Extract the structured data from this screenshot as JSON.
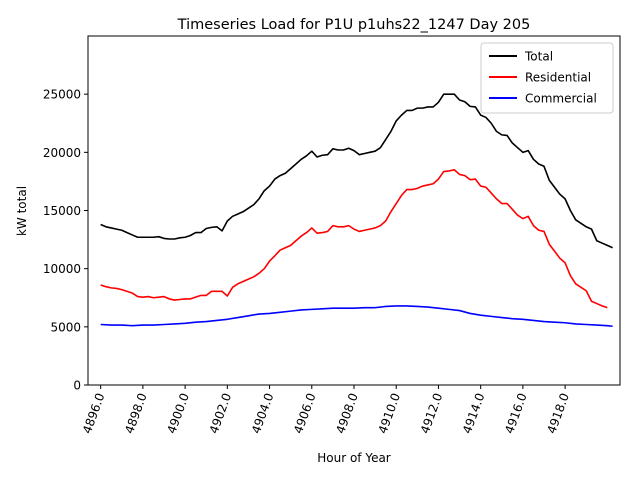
{
  "chart_data": {
    "type": "line",
    "title": "Timeseries Load for P1U p1uhs22_1247  Day 205",
    "xlabel": "Hour of Year",
    "ylabel": "kW total",
    "xlim": [
      4895.4,
      4920.6
    ],
    "ylim": [
      0,
      30000
    ],
    "xticks": [
      4896,
      4898,
      4900,
      4902,
      4904,
      4906,
      4908,
      4910,
      4912,
      4914,
      4916,
      4918
    ],
    "xtick_labels": [
      "4896.0",
      "4898.0",
      "4900.0",
      "4902.0",
      "4904.0",
      "4906.0",
      "4908.0",
      "4910.0",
      "4912.0",
      "4914.0",
      "4916.0",
      "4918.0"
    ],
    "yticks": [
      0,
      5000,
      10000,
      15000,
      20000,
      25000
    ],
    "ytick_labels": [
      "0",
      "5000",
      "10000",
      "15000",
      "20000",
      "25000"
    ],
    "legend_position": "top-right",
    "series": [
      {
        "name": "Total",
        "color": "#000000",
        "points": [
          [
            4896.0,
            13800
          ],
          [
            4896.25,
            13600
          ],
          [
            4896.5,
            13500
          ],
          [
            4896.75,
            13400
          ],
          [
            4897.0,
            13300
          ],
          [
            4897.25,
            13100
          ],
          [
            4897.5,
            12900
          ],
          [
            4897.75,
            12700
          ],
          [
            4898.0,
            12700
          ],
          [
            4898.25,
            12700
          ],
          [
            4898.5,
            12700
          ],
          [
            4898.75,
            12750
          ],
          [
            4899.0,
            12600
          ],
          [
            4899.25,
            12550
          ],
          [
            4899.5,
            12550
          ],
          [
            4899.75,
            12650
          ],
          [
            4900.0,
            12700
          ],
          [
            4900.25,
            12850
          ],
          [
            4900.5,
            13100
          ],
          [
            4900.75,
            13100
          ],
          [
            4901.0,
            13450
          ],
          [
            4901.25,
            13550
          ],
          [
            4901.5,
            13600
          ],
          [
            4901.75,
            13250
          ],
          [
            4902.0,
            14100
          ],
          [
            4902.25,
            14500
          ],
          [
            4902.5,
            14700
          ],
          [
            4902.75,
            14900
          ],
          [
            4903.0,
            15200
          ],
          [
            4903.25,
            15500
          ],
          [
            4903.5,
            16000
          ],
          [
            4903.75,
            16700
          ],
          [
            4904.0,
            17100
          ],
          [
            4904.25,
            17700
          ],
          [
            4904.5,
            18000
          ],
          [
            4904.75,
            18200
          ],
          [
            4905.0,
            18600
          ],
          [
            4905.25,
            19000
          ],
          [
            4905.5,
            19400
          ],
          [
            4905.75,
            19700
          ],
          [
            4906.0,
            20100
          ],
          [
            4906.25,
            19600
          ],
          [
            4906.5,
            19750
          ],
          [
            4906.75,
            19800
          ],
          [
            4907.0,
            20300
          ],
          [
            4907.25,
            20200
          ],
          [
            4907.5,
            20200
          ],
          [
            4907.75,
            20350
          ],
          [
            4908.0,
            20150
          ],
          [
            4908.25,
            19800
          ],
          [
            4908.5,
            19900
          ],
          [
            4908.75,
            20000
          ],
          [
            4909.0,
            20100
          ],
          [
            4909.25,
            20400
          ],
          [
            4909.5,
            21100
          ],
          [
            4909.75,
            21800
          ],
          [
            4910.0,
            22700
          ],
          [
            4910.25,
            23200
          ],
          [
            4910.5,
            23600
          ],
          [
            4910.75,
            23600
          ],
          [
            4911.0,
            23800
          ],
          [
            4911.25,
            23800
          ],
          [
            4911.5,
            23900
          ],
          [
            4911.75,
            23900
          ],
          [
            4912.0,
            24300
          ],
          [
            4912.25,
            25000
          ],
          [
            4912.5,
            25000
          ],
          [
            4912.75,
            25000
          ],
          [
            4913.0,
            24500
          ],
          [
            4913.25,
            24350
          ],
          [
            4913.5,
            23950
          ],
          [
            4913.75,
            23900
          ],
          [
            4914.0,
            23200
          ],
          [
            4914.25,
            23000
          ],
          [
            4914.5,
            22500
          ],
          [
            4914.75,
            21800
          ],
          [
            4915.0,
            21500
          ],
          [
            4915.25,
            21450
          ],
          [
            4915.5,
            20800
          ],
          [
            4915.75,
            20400
          ],
          [
            4916.0,
            20000
          ],
          [
            4916.25,
            20150
          ],
          [
            4916.5,
            19400
          ],
          [
            4916.75,
            19000
          ],
          [
            4917.0,
            18800
          ],
          [
            4917.25,
            17600
          ],
          [
            4917.5,
            17000
          ],
          [
            4917.75,
            16400
          ],
          [
            4918.0,
            16000
          ],
          [
            4918.25,
            15000
          ],
          [
            4918.5,
            14200
          ],
          [
            4918.75,
            13900
          ],
          [
            4919.0,
            13600
          ],
          [
            4919.25,
            13400
          ],
          [
            4919.5,
            12400
          ],
          [
            4919.75,
            12200
          ],
          [
            4920.0,
            12000
          ],
          [
            4920.25,
            11800
          ]
        ]
      },
      {
        "name": "Residential",
        "color": "#ff0000",
        "points": [
          [
            4896.0,
            8600
          ],
          [
            4896.25,
            8450
          ],
          [
            4896.5,
            8350
          ],
          [
            4896.75,
            8300
          ],
          [
            4897.0,
            8200
          ],
          [
            4897.25,
            8050
          ],
          [
            4897.5,
            7900
          ],
          [
            4897.75,
            7600
          ],
          [
            4898.0,
            7550
          ],
          [
            4898.25,
            7600
          ],
          [
            4898.5,
            7500
          ],
          [
            4898.75,
            7550
          ],
          [
            4899.0,
            7600
          ],
          [
            4899.25,
            7400
          ],
          [
            4899.5,
            7300
          ],
          [
            4899.75,
            7350
          ],
          [
            4900.0,
            7400
          ],
          [
            4900.25,
            7400
          ],
          [
            4900.5,
            7550
          ],
          [
            4900.75,
            7700
          ],
          [
            4901.0,
            7700
          ],
          [
            4901.25,
            8050
          ],
          [
            4901.5,
            8050
          ],
          [
            4901.75,
            8050
          ],
          [
            4902.0,
            7650
          ],
          [
            4902.25,
            8400
          ],
          [
            4902.5,
            8700
          ],
          [
            4902.75,
            8900
          ],
          [
            4903.0,
            9100
          ],
          [
            4903.25,
            9300
          ],
          [
            4903.5,
            9600
          ],
          [
            4903.75,
            10000
          ],
          [
            4904.0,
            10650
          ],
          [
            4904.25,
            11100
          ],
          [
            4904.5,
            11600
          ],
          [
            4904.75,
            11800
          ],
          [
            4905.0,
            12000
          ],
          [
            4905.25,
            12400
          ],
          [
            4905.5,
            12800
          ],
          [
            4905.75,
            13100
          ],
          [
            4906.0,
            13500
          ],
          [
            4906.25,
            13050
          ],
          [
            4906.5,
            13100
          ],
          [
            4906.75,
            13200
          ],
          [
            4907.0,
            13700
          ],
          [
            4907.25,
            13600
          ],
          [
            4907.5,
            13600
          ],
          [
            4907.75,
            13700
          ],
          [
            4908.0,
            13400
          ],
          [
            4908.25,
            13200
          ],
          [
            4908.5,
            13300
          ],
          [
            4908.75,
            13400
          ],
          [
            4909.0,
            13500
          ],
          [
            4909.25,
            13700
          ],
          [
            4909.5,
            14100
          ],
          [
            4909.75,
            14900
          ],
          [
            4910.0,
            15600
          ],
          [
            4910.25,
            16300
          ],
          [
            4910.5,
            16800
          ],
          [
            4910.75,
            16800
          ],
          [
            4911.0,
            16900
          ],
          [
            4911.25,
            17100
          ],
          [
            4911.5,
            17200
          ],
          [
            4911.75,
            17300
          ],
          [
            4912.0,
            17700
          ],
          [
            4912.25,
            18350
          ],
          [
            4912.5,
            18400
          ],
          [
            4912.75,
            18500
          ],
          [
            4913.0,
            18100
          ],
          [
            4913.25,
            18000
          ],
          [
            4913.5,
            17650
          ],
          [
            4913.75,
            17700
          ],
          [
            4914.0,
            17100
          ],
          [
            4914.25,
            17000
          ],
          [
            4914.5,
            16500
          ],
          [
            4914.75,
            16000
          ],
          [
            4915.0,
            15600
          ],
          [
            4915.25,
            15600
          ],
          [
            4915.5,
            15100
          ],
          [
            4915.75,
            14600
          ],
          [
            4916.0,
            14300
          ],
          [
            4916.25,
            14500
          ],
          [
            4916.5,
            13700
          ],
          [
            4916.75,
            13300
          ],
          [
            4917.0,
            13200
          ],
          [
            4917.25,
            12100
          ],
          [
            4917.5,
            11500
          ],
          [
            4917.75,
            10900
          ],
          [
            4918.0,
            10500
          ],
          [
            4918.25,
            9400
          ],
          [
            4918.5,
            8700
          ],
          [
            4918.75,
            8400
          ],
          [
            4919.0,
            8100
          ],
          [
            4919.25,
            7200
          ],
          [
            4919.5,
            7000
          ],
          [
            4919.75,
            6800
          ],
          [
            4920.0,
            6650
          ]
        ]
      },
      {
        "name": "Commercial",
        "color": "#0000ff",
        "points": [
          [
            4896.0,
            5200
          ],
          [
            4896.5,
            5150
          ],
          [
            4897.0,
            5150
          ],
          [
            4897.5,
            5100
          ],
          [
            4898.0,
            5150
          ],
          [
            4898.5,
            5150
          ],
          [
            4899.0,
            5200
          ],
          [
            4899.5,
            5250
          ],
          [
            4900.0,
            5300
          ],
          [
            4900.5,
            5400
          ],
          [
            4901.0,
            5450
          ],
          [
            4901.5,
            5550
          ],
          [
            4902.0,
            5650
          ],
          [
            4902.5,
            5800
          ],
          [
            4903.0,
            5950
          ],
          [
            4903.5,
            6100
          ],
          [
            4904.0,
            6150
          ],
          [
            4904.5,
            6250
          ],
          [
            4905.0,
            6350
          ],
          [
            4905.5,
            6450
          ],
          [
            4906.0,
            6500
          ],
          [
            4906.5,
            6550
          ],
          [
            4907.0,
            6600
          ],
          [
            4907.5,
            6600
          ],
          [
            4908.0,
            6600
          ],
          [
            4908.5,
            6650
          ],
          [
            4909.0,
            6650
          ],
          [
            4909.5,
            6750
          ],
          [
            4910.0,
            6800
          ],
          [
            4910.5,
            6800
          ],
          [
            4911.0,
            6750
          ],
          [
            4911.5,
            6700
          ],
          [
            4912.0,
            6600
          ],
          [
            4912.5,
            6500
          ],
          [
            4913.0,
            6400
          ],
          [
            4913.5,
            6150
          ],
          [
            4914.0,
            6000
          ],
          [
            4914.5,
            5900
          ],
          [
            4915.0,
            5800
          ],
          [
            4915.5,
            5700
          ],
          [
            4916.0,
            5650
          ],
          [
            4916.5,
            5550
          ],
          [
            4917.0,
            5450
          ],
          [
            4917.5,
            5400
          ],
          [
            4918.0,
            5350
          ],
          [
            4918.5,
            5250
          ],
          [
            4919.0,
            5200
          ],
          [
            4919.5,
            5150
          ],
          [
            4920.0,
            5100
          ],
          [
            4920.25,
            5050
          ]
        ]
      }
    ]
  }
}
